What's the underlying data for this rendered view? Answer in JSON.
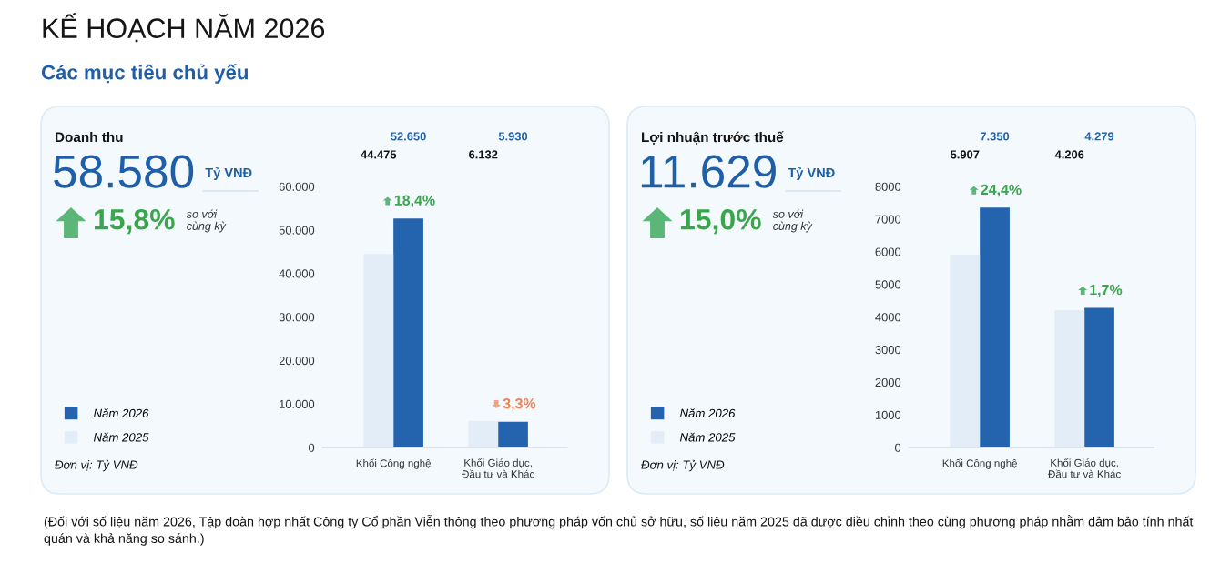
{
  "chart_data": [
    {
      "type": "other",
      "title": "KẾ HOẠCH NĂM 2026",
      "subtitle": "Các mục tiêu chủ yếu"
    },
    {
      "type": "other",
      "title": "Doanh thu",
      "annotations": [
        "58.580",
        "Tỷ VNĐ",
        "15,8%",
        "so với\ncùng kỳ"
      ]
    },
    {
      "type": "bar",
      "categories": [
        "Khối Công nghệ",
        "Khối Giáo dục,\nĐầu tư và Khác"
      ],
      "series": [
        {
          "name": "Năm 2026",
          "color": "#2463ae",
          "values": [
            52650,
            5930
          ],
          "value_labels": [
            "52.650",
            "5.930"
          ]
        },
        {
          "name": "Năm 2025",
          "color": "#e3edf7",
          "values": [
            44475,
            6132
          ],
          "value_labels": [
            "44.475",
            "6.132"
          ]
        }
      ],
      "ylim": [
        0,
        60000
      ],
      "yticks": [
        0,
        {
          "value": 10000,
          "label": "10.000"
        },
        {
          "value": 20000,
          "label": "20.000"
        },
        {
          "value": 30000,
          "label": "30.000"
        },
        {
          "value": 40000,
          "label": "40.000"
        },
        {
          "value": 50000,
          "label": "50.000"
        },
        {
          "value": 60000,
          "label": "60.000"
        }
      ],
      "legend": "bottom left",
      "annotations": [
        "Đơn vị: Tỷ VNĐ",
        {
          "text": "18,4%",
          "x": "Khối Công nghệ",
          "y": 52650
        },
        {
          "text": "3,3%",
          "x": "Khối Giáo dục,\nĐầu tư và Khác",
          "y": 5930
        }
      ]
    },
    {
      "type": "other",
      "title": "Lợi nhuận trước thuế",
      "annotations": [
        "11.629",
        "Tỷ VNĐ",
        "15,0%",
        "so với\ncùng kỳ"
      ]
    },
    {
      "type": "bar",
      "categories": [
        "Khối Công nghệ",
        "Khối Giáo dục,\nĐầu tư và Khác"
      ],
      "series": [
        {
          "name": "Năm 2026",
          "color": "#2463ae",
          "values": [
            7350,
            4279
          ],
          "value_labels": [
            "7.350",
            "4.279"
          ]
        },
        {
          "name": "Năm 2025",
          "color": "#e3edf7",
          "values": [
            5907,
            4206
          ],
          "value_labels": [
            "5.907",
            "4.206"
          ]
        }
      ],
      "ylim": [
        0,
        8000
      ],
      "yticks": [
        0,
        1000,
        2000,
        3000,
        4000,
        5000,
        6000,
        7000,
        8000
      ],
      "legend": "bottom left",
      "annotations": [
        "Đơn vị: Tỷ VNĐ",
        {
          "text": "24,4%",
          "x": "Khối Công nghệ",
          "y": 7350
        },
        {
          "text": "1,7%",
          "x": "Khối Giáo dục,\nĐầu tư và Khác",
          "y": 4279
        }
      ]
    },
    {
      "type": "other",
      "annotations": [
        "(Đối với số liệu năm 2026, Tập đoàn hợp nhất Công ty Cổ phần Viễn thông theo phương pháp vốn chủ sở hữu, số liệu năm 2025 đã được điều chỉnh theo cùng phương pháp nhằm đảm bảo tính nhất quán và khả năng so sánh.)"
      ]
    }
  ]
}
